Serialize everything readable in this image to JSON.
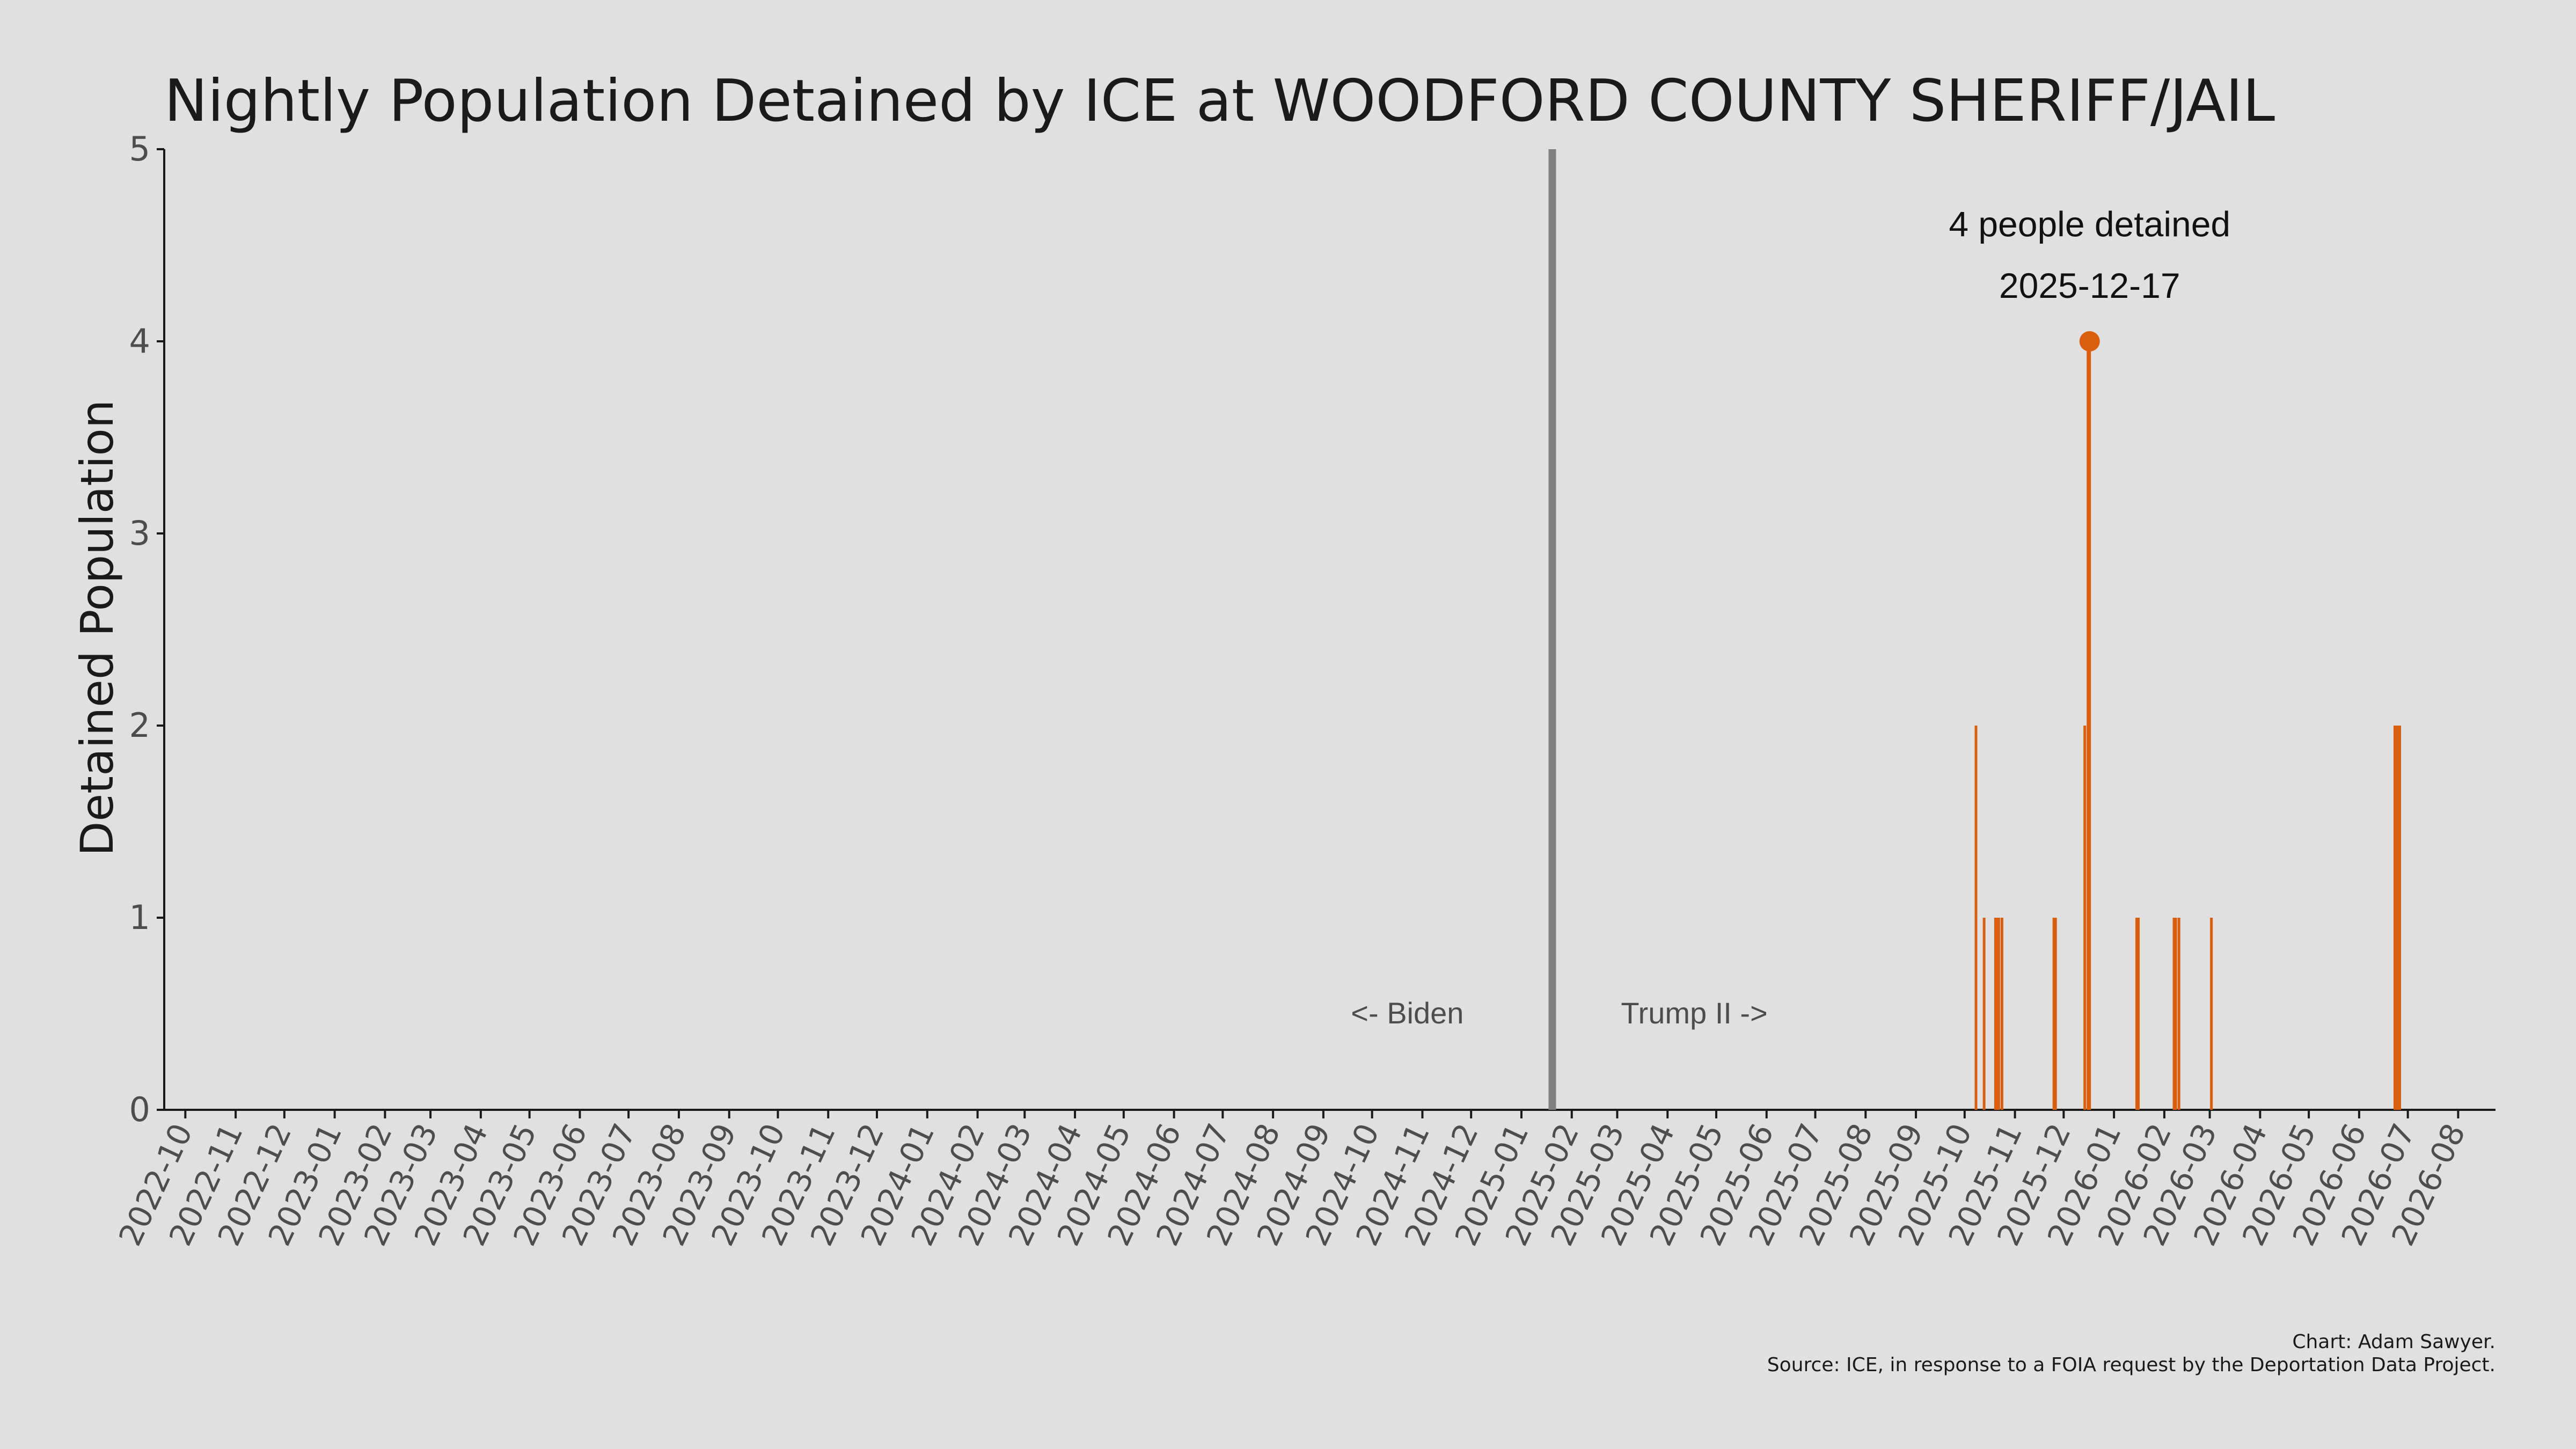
{
  "chart_data": {
    "type": "bar",
    "title": "Nightly Population Detained by ICE at WOODFORD COUNTY SHERIFF/JAIL",
    "ylabel": "Detained Population",
    "xlabel": "",
    "ylim": [
      0,
      5
    ],
    "yticks": [
      0,
      1,
      2,
      3,
      4,
      5
    ],
    "xlim": [
      "2022-09-18",
      "2026-08-24"
    ],
    "xticks": [
      "2022-10",
      "2022-11",
      "2022-12",
      "2023-01",
      "2023-02",
      "2023-03",
      "2023-04",
      "2023-05",
      "2023-06",
      "2023-07",
      "2023-08",
      "2023-09",
      "2023-10",
      "2023-11",
      "2023-12",
      "2024-01",
      "2024-02",
      "2024-03",
      "2024-04",
      "2024-05",
      "2024-06",
      "2024-07",
      "2024-08",
      "2024-09",
      "2024-10",
      "2024-11",
      "2024-12",
      "2025-01",
      "2025-02",
      "2025-03",
      "2025-04",
      "2025-05",
      "2025-06",
      "2025-07",
      "2025-08",
      "2025-09",
      "2025-10",
      "2025-11",
      "2025-12",
      "2026-01",
      "2026-02",
      "2026-03",
      "2026-04",
      "2026-05",
      "2026-06",
      "2026-07",
      "2026-08"
    ],
    "grid": false,
    "bar_color": "#d95f0e",
    "divider_color": "#808080",
    "divider_date": "2025-01-20",
    "era_labels": {
      "left": "<- Biden",
      "right": "Trump II ->"
    },
    "points": [
      {
        "date": "2025-10-08",
        "value": 2
      },
      {
        "date": "2025-10-13",
        "value": 1
      },
      {
        "date": "2025-10-20",
        "value": 1
      },
      {
        "date": "2025-10-21",
        "value": 1
      },
      {
        "date": "2025-10-22",
        "value": 1
      },
      {
        "date": "2025-10-24",
        "value": 1
      },
      {
        "date": "2025-11-25",
        "value": 1
      },
      {
        "date": "2025-11-26",
        "value": 1
      },
      {
        "date": "2025-12-14",
        "value": 2
      },
      {
        "date": "2025-12-16",
        "value": 4
      },
      {
        "date": "2025-12-17",
        "value": 4
      },
      {
        "date": "2026-01-15",
        "value": 1
      },
      {
        "date": "2026-01-16",
        "value": 1
      },
      {
        "date": "2026-02-07",
        "value": 1
      },
      {
        "date": "2026-02-08",
        "value": 1
      },
      {
        "date": "2026-02-10",
        "value": 1
      },
      {
        "date": "2026-03-02",
        "value": 1
      },
      {
        "date": "2026-06-23",
        "value": 2
      },
      {
        "date": "2026-06-24",
        "value": 2
      },
      {
        "date": "2026-06-25",
        "value": 2
      },
      {
        "date": "2026-06-26",
        "value": 2
      }
    ],
    "peak": {
      "date": "2025-12-17",
      "value": 4,
      "label_line1": "4 people detained",
      "label_line2": "2025-12-17"
    },
    "caption_line1": "Chart: Adam Sawyer.",
    "caption_line2": "Source: ICE, in response to a FOIA request by the Deportation Data Project."
  }
}
